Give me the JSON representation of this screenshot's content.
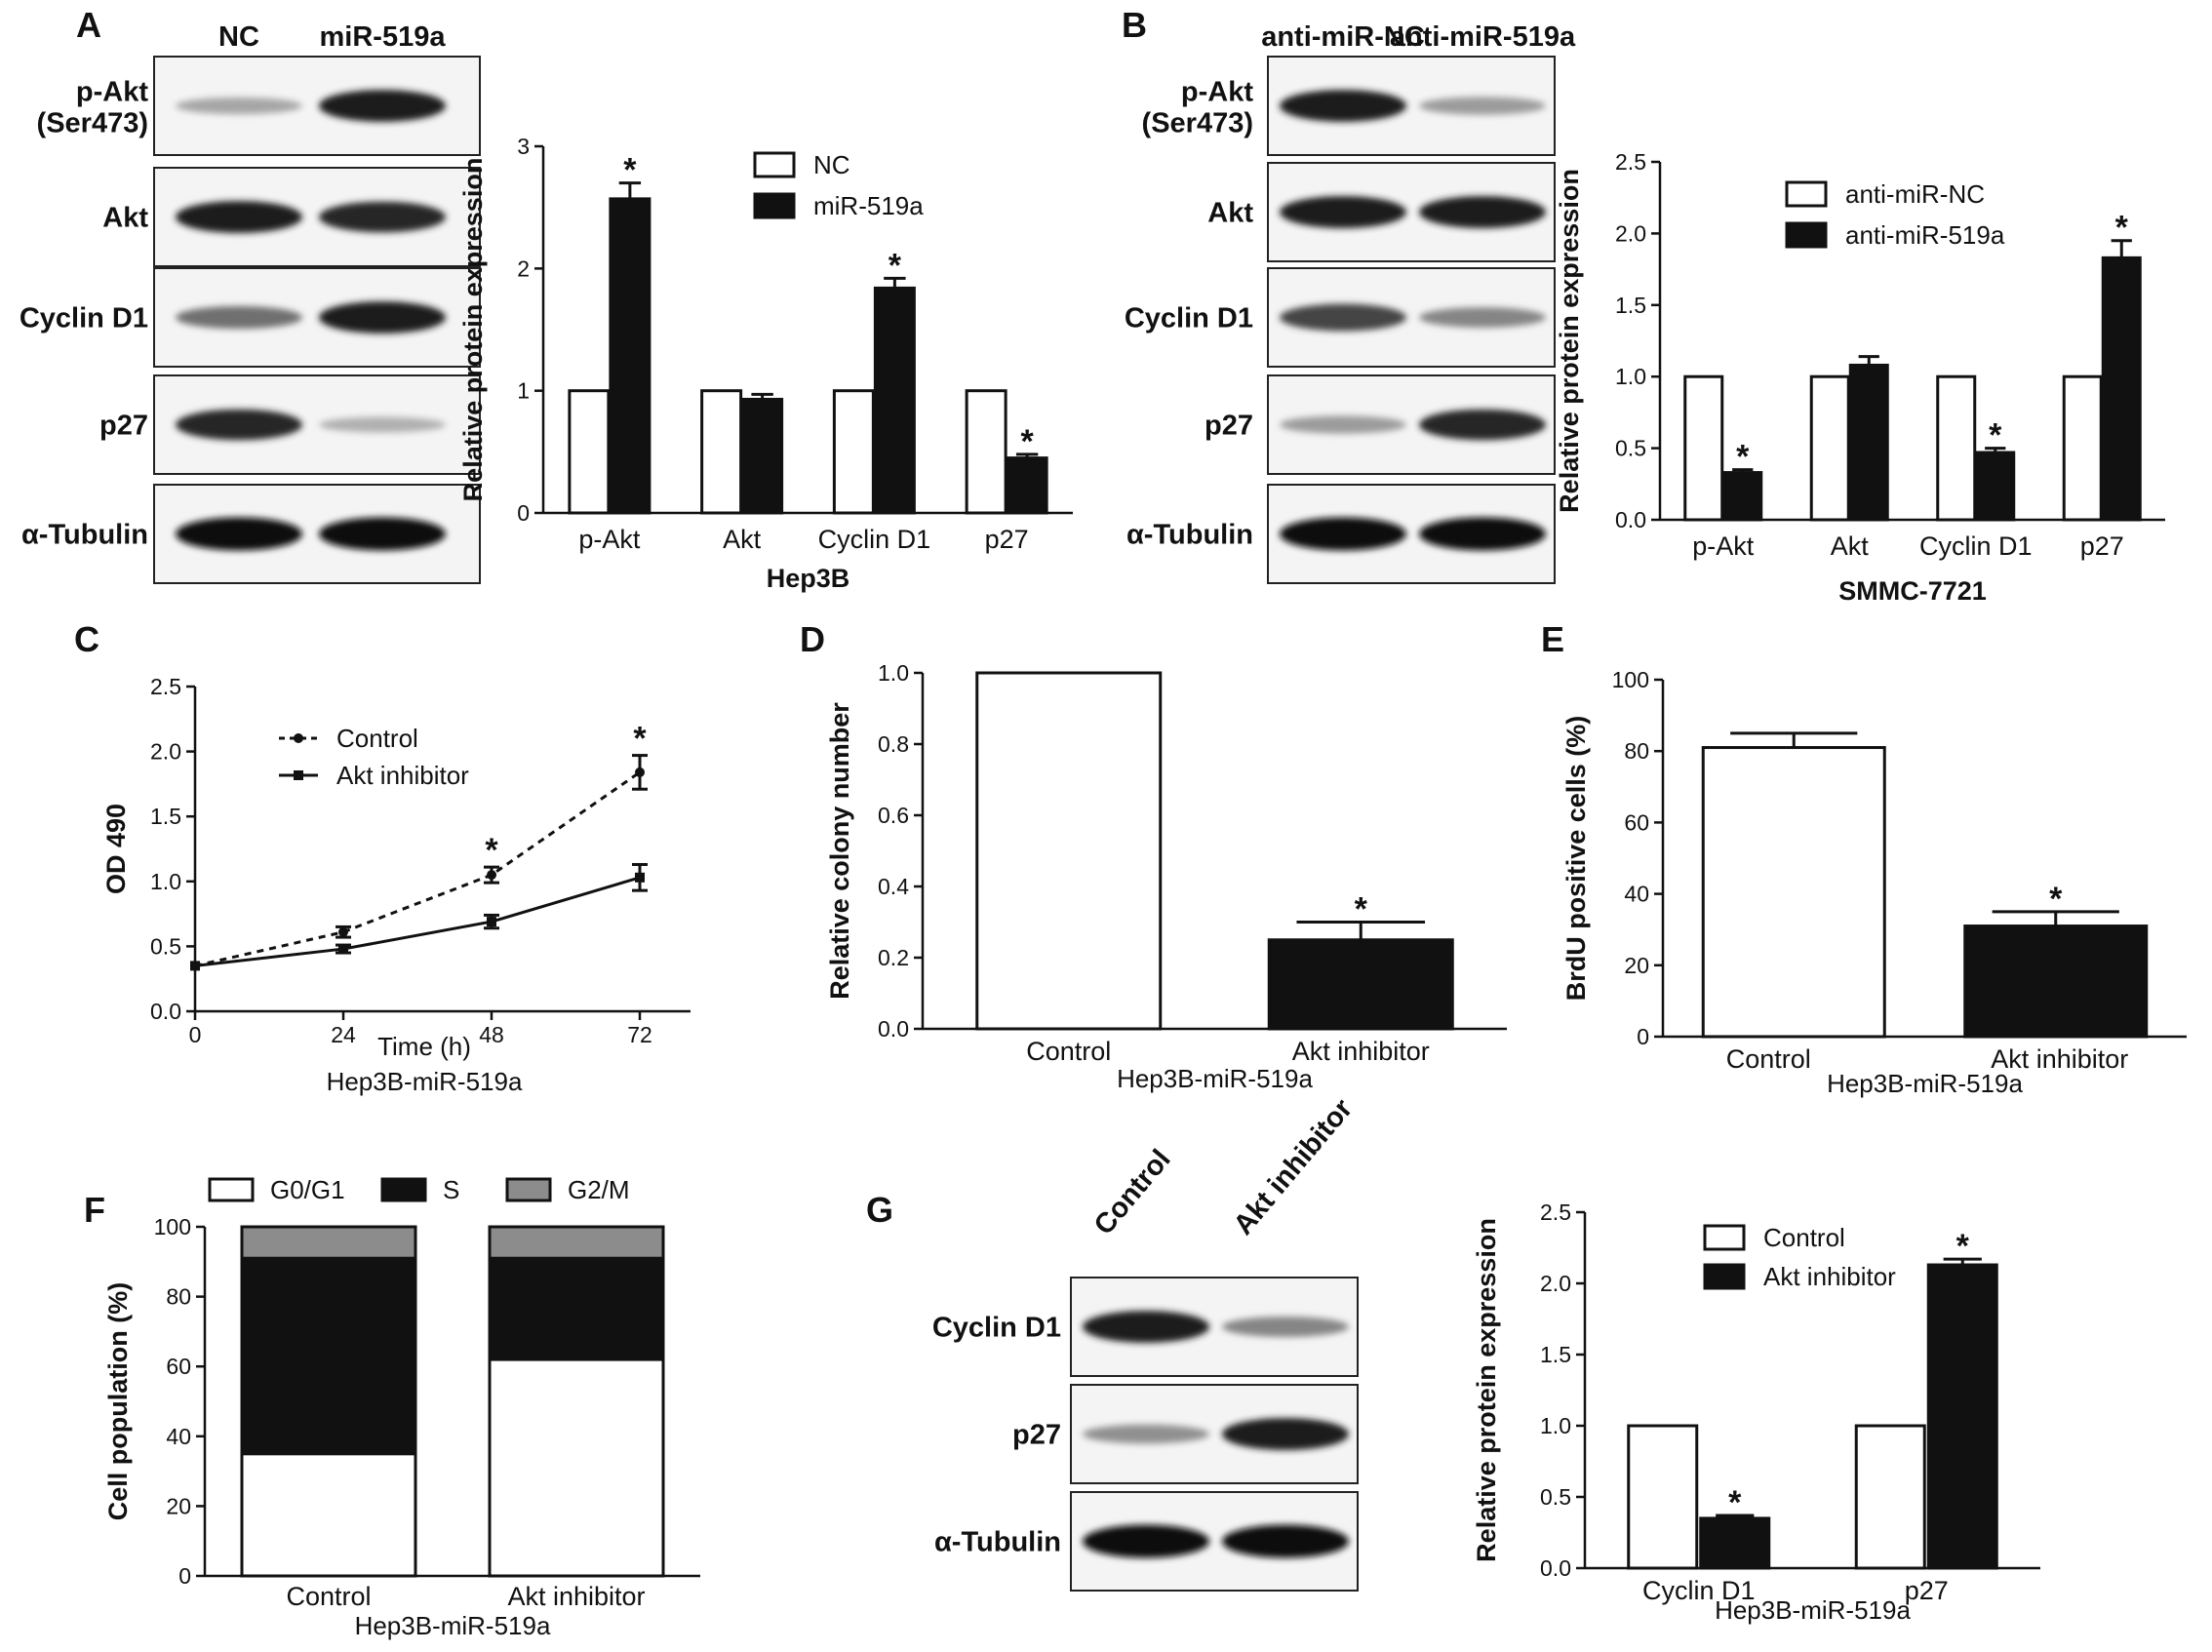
{
  "panel_labels": {
    "A": "A",
    "B": "B",
    "C": "C",
    "D": "D",
    "E": "E",
    "F": "F",
    "G": "G"
  },
  "significance_marker": "*",
  "blots": {
    "A": {
      "columns": [
        "NC",
        "miR-519a"
      ],
      "rows": [
        "p-Akt\n(Ser473)",
        "Akt",
        "Cyclin D1",
        "p27",
        "α-Tubulin"
      ],
      "intensities": [
        [
          0.3,
          0.95
        ],
        [
          0.95,
          0.9
        ],
        [
          0.55,
          0.95
        ],
        [
          0.9,
          0.25
        ],
        [
          1.0,
          1.0
        ]
      ]
    },
    "B": {
      "columns": [
        "anti-miR-NC",
        "anti-miR-519a"
      ],
      "rows": [
        "p-Akt\n(Ser473)",
        "Akt",
        "Cyclin D1",
        "p27",
        "α-Tubulin"
      ],
      "intensities": [
        [
          0.95,
          0.35
        ],
        [
          0.95,
          0.95
        ],
        [
          0.75,
          0.45
        ],
        [
          0.35,
          0.9
        ],
        [
          1.0,
          1.0
        ]
      ]
    },
    "G": {
      "columns": [
        "Control",
        "Akt inhibitor"
      ],
      "rows": [
        "Cyclin D1",
        "p27",
        "α-Tubulin"
      ],
      "intensities": [
        [
          0.95,
          0.45
        ],
        [
          0.4,
          0.95
        ],
        [
          1.0,
          1.0
        ]
      ]
    }
  },
  "chart_data": [
    {
      "id": "A",
      "type": "bar",
      "categories": [
        "p-Akt",
        "Akt",
        "Cyclin D1",
        "p27"
      ],
      "series": [
        {
          "name": "NC",
          "values": [
            1.0,
            1.0,
            1.0,
            1.0
          ],
          "errors": [
            0,
            0,
            0,
            0
          ],
          "color": "#ffffff"
        },
        {
          "name": "miR-519a",
          "values": [
            2.57,
            0.93,
            1.84,
            0.45
          ],
          "errors": [
            0.13,
            0.04,
            0.08,
            0.03
          ],
          "color": "#111111"
        }
      ],
      "significant": [
        false,
        false,
        false,
        false,
        true,
        false,
        true,
        true
      ],
      "xlabel": "Hep3B",
      "ylabel": "Relative  protein expression",
      "ylim": [
        0,
        3
      ],
      "yticks": [
        "0",
        "1",
        "2",
        "3"
      ],
      "legend": "top-right"
    },
    {
      "id": "B",
      "type": "bar",
      "categories": [
        "p-Akt",
        "Akt",
        "Cyclin D1",
        "p27"
      ],
      "series": [
        {
          "name": "anti-miR-NC",
          "values": [
            1.0,
            1.0,
            1.0,
            1.0
          ],
          "errors": [
            0,
            0,
            0,
            0
          ],
          "color": "#ffffff"
        },
        {
          "name": "anti-miR-519a",
          "values": [
            0.33,
            1.08,
            0.47,
            1.83
          ],
          "errors": [
            0.02,
            0.06,
            0.03,
            0.12
          ],
          "color": "#111111"
        }
      ],
      "significant": [
        false,
        false,
        false,
        false,
        true,
        false,
        true,
        true
      ],
      "xlabel": "SMMC-7721",
      "ylabel": "Relative  protein expression",
      "ylim": [
        0,
        2.5
      ],
      "yticks": [
        "0.0",
        "0.5",
        "1.0",
        "1.5",
        "2.0",
        "2.5"
      ],
      "legend": "top-right"
    },
    {
      "id": "C",
      "type": "line",
      "x": [
        0,
        24,
        48,
        72
      ],
      "xticks": [
        "0",
        "24",
        "48",
        "72"
      ],
      "series": [
        {
          "name": "Control",
          "values": [
            0.35,
            0.61,
            1.05,
            1.84
          ],
          "errors": [
            0.02,
            0.04,
            0.06,
            0.13
          ],
          "style": "dotted"
        },
        {
          "name": "Akt inhibitor",
          "values": [
            0.35,
            0.48,
            0.69,
            1.03
          ],
          "errors": [
            0.02,
            0.03,
            0.05,
            0.1
          ],
          "style": "solid"
        }
      ],
      "significant_x": [
        48,
        72
      ],
      "xlabel": "Time (h)",
      "subtitle": "Hep3B-miR-519a",
      "ylabel": "OD 490",
      "ylim": [
        0,
        2.5
      ],
      "yticks": [
        "0.0",
        "0.5",
        "1.0",
        "1.5",
        "2.0",
        "2.5"
      ],
      "legend": "top-left"
    },
    {
      "id": "D",
      "type": "bar",
      "categories": [
        "Control",
        "Akt inhibitor"
      ],
      "values": [
        1.0,
        0.25
      ],
      "errors": [
        0,
        0.05
      ],
      "colors": [
        "#ffffff",
        "#111111"
      ],
      "significant": [
        false,
        true
      ],
      "xlabel": "Hep3B-miR-519a",
      "ylabel": "Relative colony number",
      "ylim": [
        0,
        1.0
      ],
      "yticks": [
        "0.0",
        "0.2",
        "0.4",
        "0.6",
        "0.8",
        "1.0"
      ]
    },
    {
      "id": "E",
      "type": "bar",
      "categories": [
        "Control",
        "Akt inhibitor"
      ],
      "values": [
        81,
        31
      ],
      "errors": [
        4,
        4
      ],
      "colors": [
        "#ffffff",
        "#111111"
      ],
      "significant": [
        false,
        true
      ],
      "xlabel": "Hep3B-miR-519a",
      "ylabel": "BrdU positive cells (%)",
      "ylim": [
        0,
        100
      ],
      "yticks": [
        "0",
        "20",
        "40",
        "60",
        "80",
        "100"
      ]
    },
    {
      "id": "F",
      "type": "bar",
      "stacked": true,
      "categories": [
        "Control",
        "Akt inhibitor"
      ],
      "series": [
        {
          "name": "G0/G1",
          "values": [
            35,
            62
          ],
          "color": "#ffffff"
        },
        {
          "name": "S",
          "values": [
            56,
            29
          ],
          "color": "#111111"
        },
        {
          "name": "G2/M",
          "values": [
            9,
            9
          ],
          "color": "#8c8c8c"
        }
      ],
      "xlabel": "Hep3B-miR-519a",
      "ylabel": "Cell population (%)",
      "ylim": [
        0,
        100
      ],
      "yticks": [
        "0",
        "20",
        "40",
        "60",
        "80",
        "100"
      ],
      "legend": "top"
    },
    {
      "id": "G",
      "type": "bar",
      "categories": [
        "Cyclin D1",
        "p27"
      ],
      "series": [
        {
          "name": "Control",
          "values": [
            1.0,
            1.0
          ],
          "errors": [
            0,
            0
          ],
          "color": "#ffffff"
        },
        {
          "name": "Akt inhibitor",
          "values": [
            0.35,
            2.13
          ],
          "errors": [
            0.02,
            0.04
          ],
          "color": "#111111"
        }
      ],
      "significant": [
        false,
        false,
        true,
        true
      ],
      "xlabel": "Hep3B-miR-519a",
      "ylabel": "Relative  protein expression",
      "ylim": [
        0,
        2.5
      ],
      "yticks": [
        "0.0",
        "0.5",
        "1.0",
        "1.5",
        "2.0",
        "2.5"
      ],
      "legend": "top-right"
    }
  ]
}
